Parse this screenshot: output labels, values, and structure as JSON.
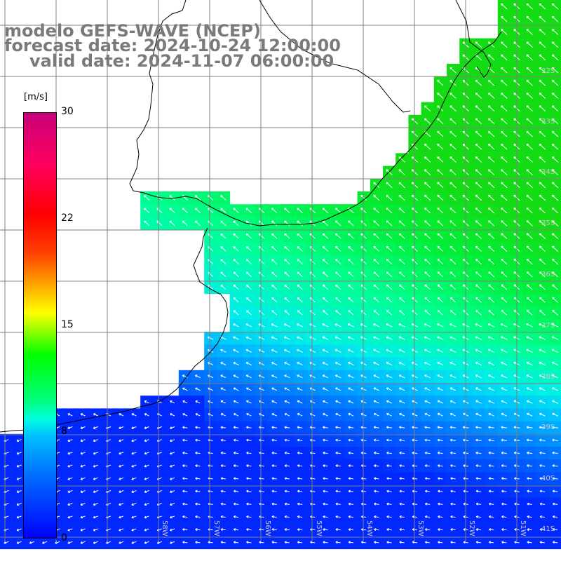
{
  "title": {
    "line1": "modelo GEFS-WAVE (NCEP)",
    "line2": "forecast date: 2024-10-24 12:00:00",
    "line3": "valid date: 2024-11-07 06:00:00"
  },
  "colorbar": {
    "unit": "[m/s]",
    "min": 0,
    "max": 30,
    "ticks": [
      "30",
      "22",
      "15",
      "8",
      "0"
    ],
    "colors": [
      "#0000ff",
      "#0070ff",
      "#00c0ff",
      "#00ffe0",
      "#00ff80",
      "#00ff00",
      "#80ff00",
      "#ffff00",
      "#ffa000",
      "#ff4000",
      "#ff0000",
      "#c8007a"
    ]
  },
  "grid": {
    "lat_labels": [
      "32S",
      "33S",
      "34S",
      "35S",
      "36S",
      "37S",
      "38S",
      "39S",
      "40S",
      "41S"
    ],
    "lon_labels": [
      "58W",
      "57W",
      "56W",
      "55W",
      "54W",
      "53W",
      "52W",
      "51W"
    ]
  },
  "colors": {
    "land": "#ffffff",
    "grid_line": "#7f7f7f",
    "coast": "#000000",
    "arrow": "#ffffff",
    "title": "#7a7a7a"
  }
}
